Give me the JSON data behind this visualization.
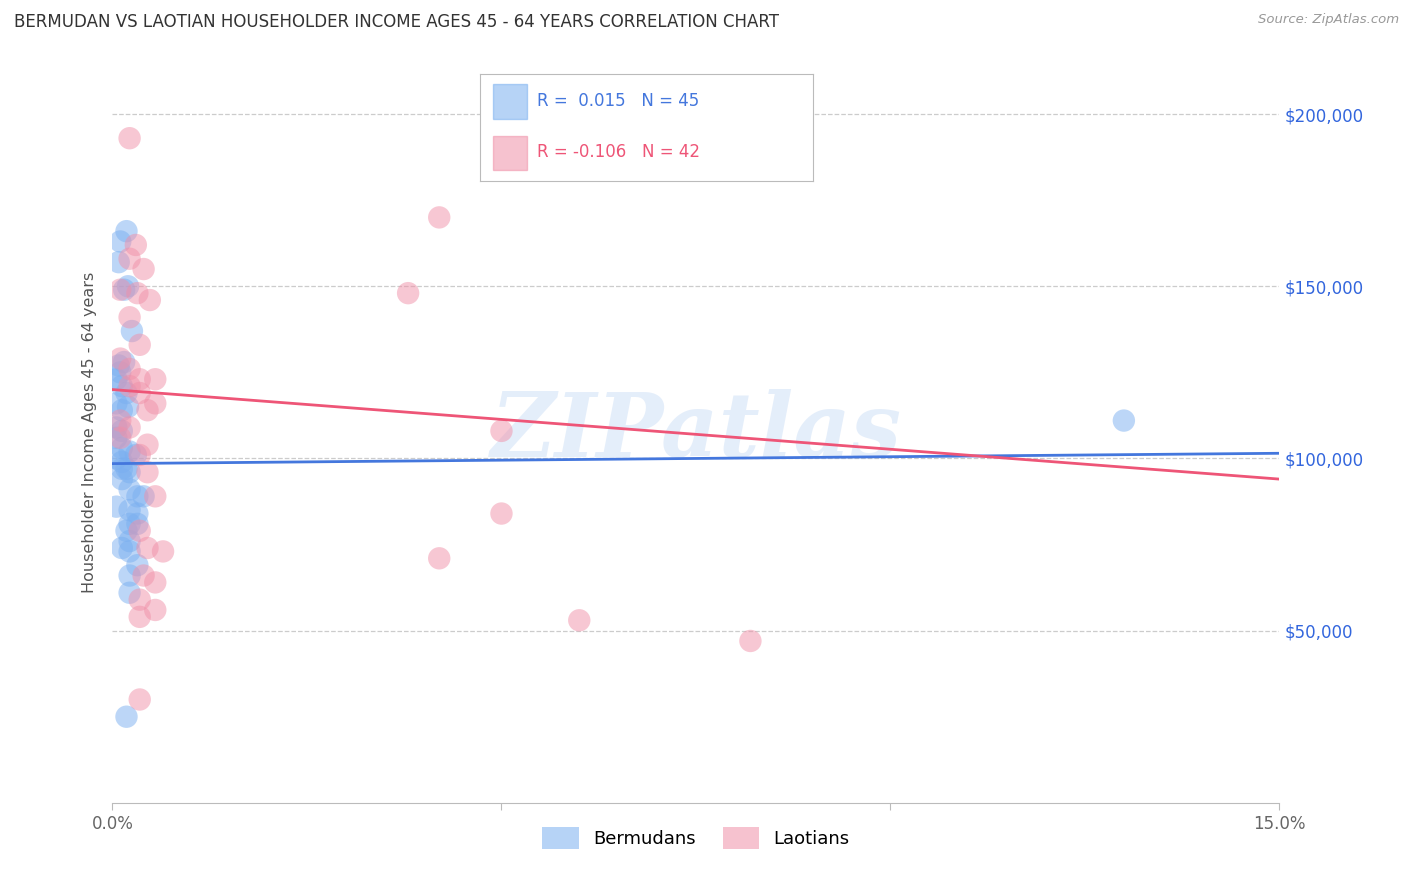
{
  "title": "BERMUDAN VS LAOTIAN HOUSEHOLDER INCOME AGES 45 - 64 YEARS CORRELATION CHART",
  "source": "Source: ZipAtlas.com",
  "ylabel": "Householder Income Ages 45 - 64 years",
  "xlim": [
    0.0,
    0.15
  ],
  "ylim": [
    0,
    215000
  ],
  "ytick_positions": [
    50000,
    100000,
    150000,
    200000
  ],
  "ytick_labels": [
    "$50,000",
    "$100,000",
    "$150,000",
    "$200,000"
  ],
  "watermark": "ZIPatlas",
  "blue_color": "#7aaff0",
  "pink_color": "#f090a8",
  "blue_line_color": "#4477dd",
  "pink_line_color": "#ee5577",
  "blue_scatter": [
    [
      0.001,
      163000
    ],
    [
      0.0018,
      166000
    ],
    [
      0.0008,
      157000
    ],
    [
      0.0015,
      149000
    ],
    [
      0.002,
      150000
    ],
    [
      0.0025,
      137000
    ],
    [
      0.0008,
      127000
    ],
    [
      0.0015,
      128000
    ],
    [
      0.001,
      125000
    ],
    [
      0.0005,
      123000
    ],
    [
      0.0012,
      121000
    ],
    [
      0.0018,
      119000
    ],
    [
      0.0005,
      116000
    ],
    [
      0.0012,
      114000
    ],
    [
      0.002,
      115000
    ],
    [
      0.0005,
      109000
    ],
    [
      0.0012,
      108000
    ],
    [
      0.0005,
      106000
    ],
    [
      0.0012,
      103000
    ],
    [
      0.0022,
      102000
    ],
    [
      0.003,
      101000
    ],
    [
      0.0005,
      100000
    ],
    [
      0.0012,
      99000
    ],
    [
      0.0012,
      97000
    ],
    [
      0.0018,
      97000
    ],
    [
      0.0022,
      96000
    ],
    [
      0.0012,
      94000
    ],
    [
      0.0022,
      91000
    ],
    [
      0.0032,
      89000
    ],
    [
      0.004,
      89000
    ],
    [
      0.0005,
      86000
    ],
    [
      0.0022,
      85000
    ],
    [
      0.0032,
      84000
    ],
    [
      0.0022,
      81000
    ],
    [
      0.0032,
      81000
    ],
    [
      0.0018,
      79000
    ],
    [
      0.0022,
      76000
    ],
    [
      0.0012,
      74000
    ],
    [
      0.0022,
      73000
    ],
    [
      0.0032,
      69000
    ],
    [
      0.0022,
      66000
    ],
    [
      0.0022,
      61000
    ],
    [
      0.13,
      111000
    ],
    [
      0.0018,
      25000
    ]
  ],
  "pink_scatter": [
    [
      0.0022,
      193000
    ],
    [
      0.06,
      185000
    ],
    [
      0.042,
      170000
    ],
    [
      0.003,
      162000
    ],
    [
      0.0022,
      158000
    ],
    [
      0.004,
      155000
    ],
    [
      0.001,
      149000
    ],
    [
      0.0032,
      148000
    ],
    [
      0.0048,
      146000
    ],
    [
      0.038,
      148000
    ],
    [
      0.0022,
      141000
    ],
    [
      0.0035,
      133000
    ],
    [
      0.001,
      129000
    ],
    [
      0.0022,
      126000
    ],
    [
      0.0035,
      123000
    ],
    [
      0.0055,
      123000
    ],
    [
      0.0022,
      121000
    ],
    [
      0.0035,
      119000
    ],
    [
      0.0055,
      116000
    ],
    [
      0.0045,
      114000
    ],
    [
      0.001,
      111000
    ],
    [
      0.0022,
      109000
    ],
    [
      0.05,
      108000
    ],
    [
      0.001,
      106000
    ],
    [
      0.0045,
      104000
    ],
    [
      0.0035,
      101000
    ],
    [
      0.0045,
      96000
    ],
    [
      0.0055,
      89000
    ],
    [
      0.05,
      84000
    ],
    [
      0.0035,
      79000
    ],
    [
      0.0045,
      74000
    ],
    [
      0.0065,
      73000
    ],
    [
      0.042,
      71000
    ],
    [
      0.004,
      66000
    ],
    [
      0.0055,
      64000
    ],
    [
      0.0035,
      59000
    ],
    [
      0.0055,
      56000
    ],
    [
      0.0035,
      54000
    ],
    [
      0.06,
      53000
    ],
    [
      0.082,
      47000
    ],
    [
      0.0035,
      30000
    ]
  ],
  "blue_trend_x": [
    0.0,
    0.15
  ],
  "blue_trend_y": [
    98500,
    101500
  ],
  "pink_trend_x": [
    0.0,
    0.15
  ],
  "pink_trend_y": [
    120000,
    94000
  ],
  "background_color": "#ffffff",
  "grid_color": "#cccccc",
  "title_color": "#333333",
  "ylabel_color": "#555555",
  "right_label_color": "#3366dd"
}
